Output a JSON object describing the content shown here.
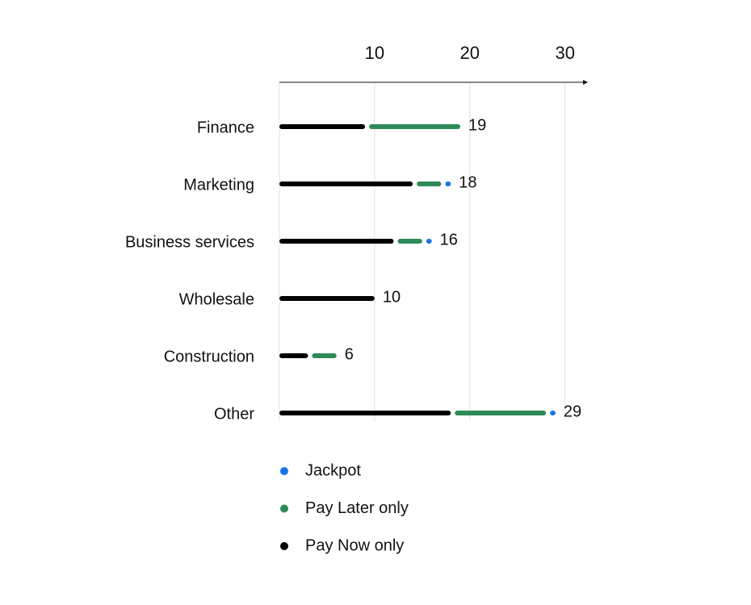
{
  "chart_data": {
    "type": "stacked-bar-horizontal",
    "categories": [
      "Finance",
      "Marketing",
      "Business services",
      "Wholesale",
      "Construction",
      "Other"
    ],
    "series": [
      {
        "name": "Pay Now only",
        "color": "#000000",
        "values": [
          9,
          14,
          12,
          10,
          3,
          18
        ]
      },
      {
        "name": "Pay Later only",
        "color": "#2e8b57",
        "values": [
          10,
          3,
          3,
          0,
          3,
          10
        ]
      },
      {
        "name": "Jackpot",
        "color": "#1a73e8",
        "values": [
          0,
          1,
          1,
          0,
          0,
          1
        ]
      }
    ],
    "totals": [
      19,
      18,
      16,
      10,
      6,
      29
    ],
    "xlim": [
      0,
      32.4
    ],
    "xticks": [
      10,
      20,
      30
    ],
    "grid": true
  }
}
